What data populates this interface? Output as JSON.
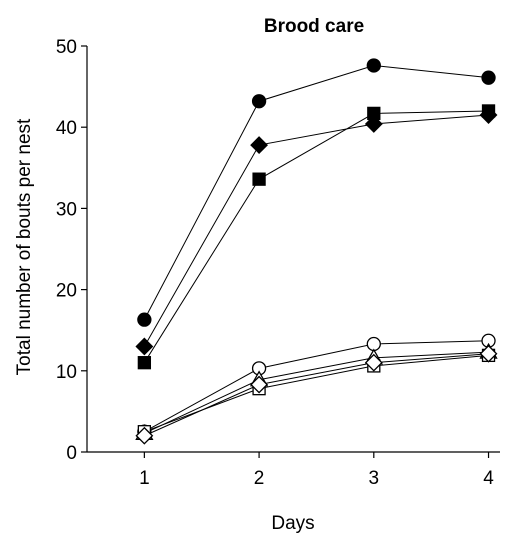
{
  "chart_data": {
    "type": "line",
    "title": "Brood care",
    "xlabel": "Days",
    "ylabel": "Total number of bouts per nest",
    "x": [
      1,
      2,
      3,
      4
    ],
    "xticks": [
      "1",
      "2",
      "3",
      "4"
    ],
    "yticks": [
      "0",
      "10",
      "20",
      "30",
      "40",
      "50"
    ],
    "xlim": [
      0.5,
      4.1
    ],
    "ylim": [
      0,
      50
    ],
    "grid": false,
    "series": [
      {
        "marker": "circle",
        "filled": true,
        "color": "#000000",
        "values": [
          16.3,
          43.2,
          47.6,
          46.1
        ]
      },
      {
        "marker": "diamond",
        "filled": true,
        "color": "#000000",
        "values": [
          13.0,
          37.8,
          40.4,
          41.5
        ]
      },
      {
        "marker": "square",
        "filled": true,
        "color": "#000000",
        "values": [
          11.0,
          33.6,
          41.7,
          42.0
        ]
      },
      {
        "marker": "circle",
        "filled": false,
        "color": "#000000",
        "values": [
          2.5,
          10.3,
          13.3,
          13.7
        ]
      },
      {
        "marker": "triangle",
        "filled": false,
        "color": "#000000",
        "values": [
          2.3,
          8.9,
          11.6,
          12.3
        ]
      },
      {
        "marker": "square",
        "filled": false,
        "color": "#000000",
        "values": [
          2.5,
          7.8,
          10.6,
          11.9
        ]
      },
      {
        "marker": "diamond",
        "filled": false,
        "color": "#000000",
        "values": [
          2.0,
          8.3,
          11.0,
          12.1
        ]
      }
    ]
  }
}
